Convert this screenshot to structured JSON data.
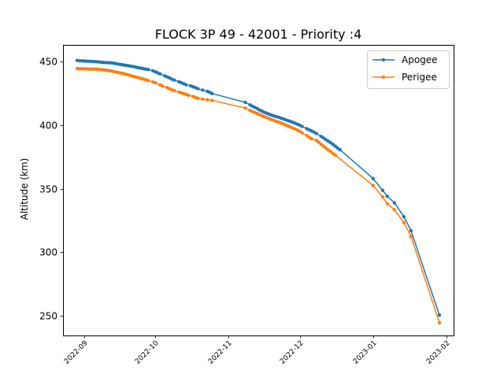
{
  "chart_data": {
    "type": "line",
    "title": "FLOCK 3P 49 - 42001 - Priority :4",
    "xlabel": "",
    "ylabel": "Altitude (km)",
    "x_axis": "date",
    "xlim": [
      "2022-08-23",
      "2023-02-04"
    ],
    "ylim": [
      234.5,
      463.2
    ],
    "x_ticks": [
      "2022-09",
      "2022-10",
      "2022-11",
      "2022-12",
      "2023-01",
      "2023-02"
    ],
    "y_ticks": [
      250,
      300,
      350,
      400,
      450
    ],
    "grid": false,
    "legend": "upper right",
    "series": [
      {
        "name": "Apogee",
        "color": "#1f77b4",
        "marker": "circle",
        "points": [
          [
            "2022-08-29",
            451.0
          ],
          [
            "2022-08-30",
            450.7
          ],
          [
            "2022-08-31",
            450.6
          ],
          [
            "2022-09-01",
            450.5
          ],
          [
            "2022-09-02",
            450.4
          ],
          [
            "2022-09-03",
            450.3
          ],
          [
            "2022-09-04",
            450.2
          ],
          [
            "2022-09-05",
            450.1
          ],
          [
            "2022-09-06",
            450.0
          ],
          [
            "2022-09-07",
            449.8
          ],
          [
            "2022-09-08",
            449.6
          ],
          [
            "2022-09-09",
            449.4
          ],
          [
            "2022-09-10",
            449.3
          ],
          [
            "2022-09-11",
            449.2
          ],
          [
            "2022-09-12",
            449.1
          ],
          [
            "2022-09-13",
            448.9
          ],
          [
            "2022-09-14",
            448.6
          ],
          [
            "2022-09-15",
            448.2
          ],
          [
            "2022-09-16",
            447.9
          ],
          [
            "2022-09-17",
            447.6
          ],
          [
            "2022-09-18",
            447.3
          ],
          [
            "2022-09-19",
            447.0
          ],
          [
            "2022-09-20",
            446.7
          ],
          [
            "2022-09-21",
            446.3
          ],
          [
            "2022-09-22",
            446.0
          ],
          [
            "2022-09-23",
            445.6
          ],
          [
            "2022-09-24",
            445.2
          ],
          [
            "2022-09-25",
            444.9
          ],
          [
            "2022-09-26",
            444.5
          ],
          [
            "2022-09-27",
            444.1
          ],
          [
            "2022-09-28",
            443.8
          ],
          [
            "2022-09-30",
            442.8
          ],
          [
            "2022-10-01",
            442.0
          ],
          [
            "2022-10-02",
            441.2
          ],
          [
            "2022-10-03",
            440.4
          ],
          [
            "2022-10-05",
            438.8
          ],
          [
            "2022-10-06",
            438.0
          ],
          [
            "2022-10-07",
            437.2
          ],
          [
            "2022-10-08",
            436.2
          ],
          [
            "2022-10-09",
            435.5
          ],
          [
            "2022-10-11",
            434.2
          ],
          [
            "2022-10-12",
            433.4
          ],
          [
            "2022-10-13",
            432.6
          ],
          [
            "2022-10-14",
            431.8
          ],
          [
            "2022-10-16",
            430.9
          ],
          [
            "2022-10-17",
            430.2
          ],
          [
            "2022-10-18",
            429.5
          ],
          [
            "2022-10-19",
            428.7
          ],
          [
            "2022-10-21",
            427.6
          ],
          [
            "2022-10-23",
            426.6
          ],
          [
            "2022-10-24",
            425.8
          ],
          [
            "2022-10-25",
            424.9
          ],
          [
            "2022-11-08",
            418.0
          ],
          [
            "2022-11-10",
            416.0
          ],
          [
            "2022-11-11",
            415.0
          ],
          [
            "2022-11-12",
            414.0
          ],
          [
            "2022-11-13",
            413.2
          ],
          [
            "2022-11-14",
            412.0
          ],
          [
            "2022-11-15",
            411.2
          ],
          [
            "2022-11-16",
            410.1
          ],
          [
            "2022-11-17",
            409.5
          ],
          [
            "2022-11-18",
            408.8
          ],
          [
            "2022-11-19",
            408.0
          ],
          [
            "2022-11-20",
            407.4
          ],
          [
            "2022-11-21",
            406.8
          ],
          [
            "2022-11-22",
            406.3
          ],
          [
            "2022-11-23",
            405.6
          ],
          [
            "2022-11-24",
            405.0
          ],
          [
            "2022-11-25",
            404.3
          ],
          [
            "2022-11-26",
            403.6
          ],
          [
            "2022-11-27",
            403.0
          ],
          [
            "2022-11-28",
            402.3
          ],
          [
            "2022-11-29",
            401.6
          ],
          [
            "2022-11-30",
            400.8
          ],
          [
            "2022-12-01",
            400.0
          ],
          [
            "2022-12-02",
            399.0
          ],
          [
            "2022-12-04",
            397.2
          ],
          [
            "2022-12-05",
            396.4
          ],
          [
            "2022-12-06",
            395.5
          ],
          [
            "2022-12-07",
            394.6
          ],
          [
            "2022-12-08",
            393.5
          ],
          [
            "2022-12-10",
            391.2
          ],
          [
            "2022-12-11",
            390.0
          ],
          [
            "2022-12-12",
            388.7
          ],
          [
            "2022-12-13",
            387.5
          ],
          [
            "2022-12-14",
            386.3
          ],
          [
            "2022-12-15",
            384.9
          ],
          [
            "2022-12-16",
            383.5
          ],
          [
            "2022-12-17",
            382.0
          ],
          [
            "2022-12-18",
            380.7
          ],
          [
            "2023-01-01",
            358.0
          ],
          [
            "2023-01-05",
            348.7
          ],
          [
            "2023-01-07",
            344.0
          ],
          [
            "2023-01-10",
            338.9
          ],
          [
            "2023-01-14",
            328.0
          ],
          [
            "2023-01-17",
            317.0
          ],
          [
            "2023-01-29",
            250.5
          ]
        ]
      },
      {
        "name": "Perigee",
        "color": "#ff7f0e",
        "marker": "circle",
        "points": [
          [
            "2022-08-29",
            444.5
          ],
          [
            "2022-08-30",
            444.4
          ],
          [
            "2022-08-31",
            444.4
          ],
          [
            "2022-09-01",
            444.3
          ],
          [
            "2022-09-02",
            444.3
          ],
          [
            "2022-09-03",
            444.2
          ],
          [
            "2022-09-04",
            444.2
          ],
          [
            "2022-09-05",
            444.1
          ],
          [
            "2022-09-06",
            444.1
          ],
          [
            "2022-09-07",
            444.0
          ],
          [
            "2022-09-08",
            443.8
          ],
          [
            "2022-09-09",
            443.6
          ],
          [
            "2022-09-10",
            443.4
          ],
          [
            "2022-09-11",
            443.1
          ],
          [
            "2022-09-12",
            442.8
          ],
          [
            "2022-09-13",
            442.4
          ],
          [
            "2022-09-14",
            442.0
          ],
          [
            "2022-09-15",
            441.6
          ],
          [
            "2022-09-16",
            441.2
          ],
          [
            "2022-09-17",
            440.8
          ],
          [
            "2022-09-18",
            440.4
          ],
          [
            "2022-09-19",
            439.9
          ],
          [
            "2022-09-20",
            439.3
          ],
          [
            "2022-09-21",
            438.8
          ],
          [
            "2022-09-22",
            438.3
          ],
          [
            "2022-09-23",
            437.8
          ],
          [
            "2022-09-24",
            437.3
          ],
          [
            "2022-09-25",
            436.8
          ],
          [
            "2022-09-26",
            436.3
          ],
          [
            "2022-09-27",
            435.7
          ],
          [
            "2022-09-28",
            435.1
          ],
          [
            "2022-09-30",
            434.0
          ],
          [
            "2022-10-01",
            433.4
          ],
          [
            "2022-10-03",
            431.8
          ],
          [
            "2022-10-04",
            430.8
          ],
          [
            "2022-10-06",
            429.6
          ],
          [
            "2022-10-07",
            428.6
          ],
          [
            "2022-10-08",
            427.8
          ],
          [
            "2022-10-09",
            427.2
          ],
          [
            "2022-10-11",
            426.0
          ],
          [
            "2022-10-12",
            425.4
          ],
          [
            "2022-10-13",
            424.8
          ],
          [
            "2022-10-14",
            424.2
          ],
          [
            "2022-10-15",
            423.6
          ],
          [
            "2022-10-17",
            422.6
          ],
          [
            "2022-10-18",
            421.8
          ],
          [
            "2022-10-19",
            421.2
          ],
          [
            "2022-10-21",
            420.5
          ],
          [
            "2022-10-23",
            420.0
          ],
          [
            "2022-10-25",
            419.5
          ],
          [
            "2022-11-08",
            413.5
          ],
          [
            "2022-11-10",
            411.6
          ],
          [
            "2022-11-11",
            410.8
          ],
          [
            "2022-11-12",
            410.0
          ],
          [
            "2022-11-13",
            409.2
          ],
          [
            "2022-11-14",
            408.4
          ],
          [
            "2022-11-15",
            407.5
          ],
          [
            "2022-11-16",
            406.7
          ],
          [
            "2022-11-17",
            406.0
          ],
          [
            "2022-11-18",
            405.2
          ],
          [
            "2022-11-19",
            404.5
          ],
          [
            "2022-11-20",
            403.8
          ],
          [
            "2022-11-21",
            403.1
          ],
          [
            "2022-11-22",
            402.4
          ],
          [
            "2022-11-23",
            401.7
          ],
          [
            "2022-11-24",
            401.0
          ],
          [
            "2022-11-25",
            400.2
          ],
          [
            "2022-11-26",
            399.4
          ],
          [
            "2022-11-27",
            398.6
          ],
          [
            "2022-11-28",
            397.8
          ],
          [
            "2022-11-29",
            397.0
          ],
          [
            "2022-11-30",
            396.2
          ],
          [
            "2022-12-01",
            395.2
          ],
          [
            "2022-12-02",
            394.0
          ],
          [
            "2022-12-04",
            391.8
          ],
          [
            "2022-12-05",
            390.6
          ],
          [
            "2022-12-06",
            389.3
          ],
          [
            "2022-12-08",
            388.0
          ],
          [
            "2022-12-09",
            386.6
          ],
          [
            "2022-12-10",
            385.0
          ],
          [
            "2022-12-11",
            383.5
          ],
          [
            "2022-12-12",
            382.0
          ],
          [
            "2022-12-13",
            380.5
          ],
          [
            "2022-12-14",
            379.3
          ],
          [
            "2022-12-15",
            377.8
          ],
          [
            "2022-12-16",
            376.5
          ],
          [
            "2023-01-01",
            352.5
          ],
          [
            "2023-01-05",
            343.5
          ],
          [
            "2023-01-07",
            338.2
          ],
          [
            "2023-01-10",
            333.5
          ],
          [
            "2023-01-14",
            323.3
          ],
          [
            "2023-01-17",
            312.5
          ],
          [
            "2023-01-29",
            244.5
          ]
        ]
      }
    ]
  }
}
